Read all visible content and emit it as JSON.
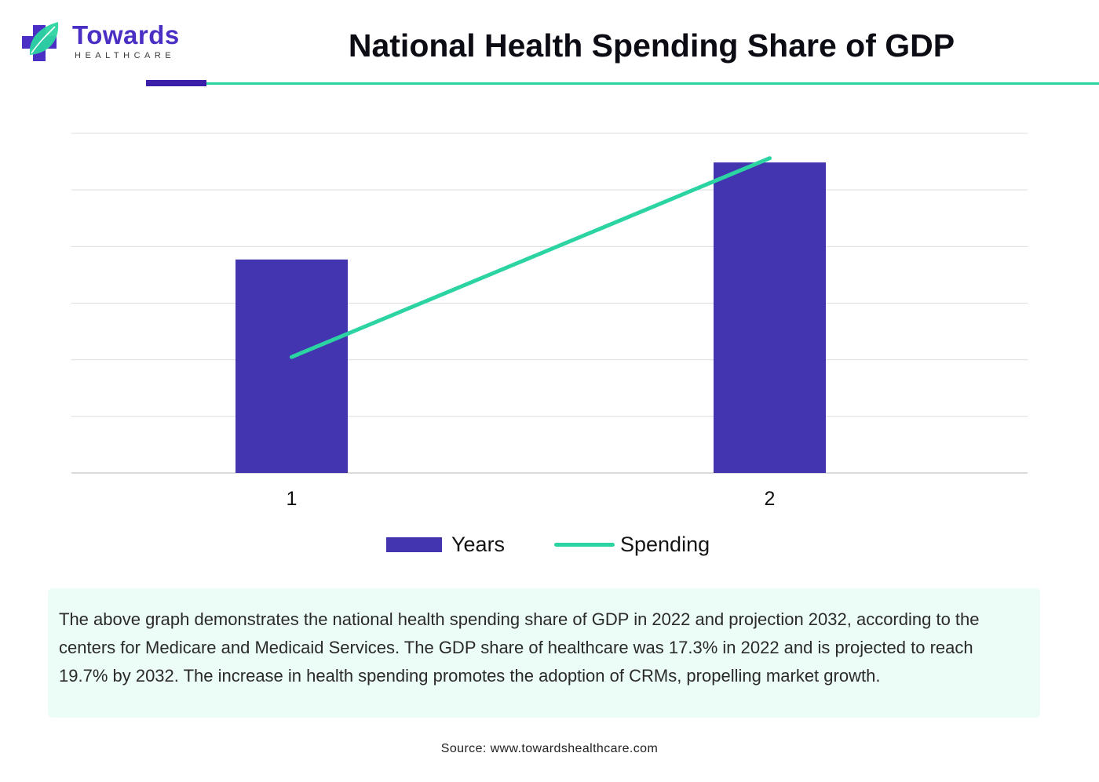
{
  "brand": {
    "name": "Towards",
    "tagline": "HEALTHCARE",
    "colors": {
      "purple": "#4b2fc4",
      "teal": "#2bd4a2",
      "bar": "#4335b0"
    }
  },
  "page_title": "National Health Spending Share of GDP",
  "chart_data": {
    "type": "bar",
    "title": "National Health Spending Share of GDP",
    "categories": [
      "1",
      "2"
    ],
    "series": [
      {
        "name": "Years",
        "kind": "bar",
        "values": [
          2022,
          2032
        ],
        "color": "#4335b0"
      },
      {
        "name": "Spending",
        "kind": "line",
        "values": [
          17.3,
          19.7
        ],
        "color": "#2bd4a2"
      }
    ],
    "gridlines": 6,
    "y_axis_visible": false,
    "bar_ylim": [
      2000,
      2035
    ],
    "line_ylim": [
      15.9,
      20.0
    ],
    "legend": [
      "Years",
      "Spending"
    ],
    "legend_position": "bottom"
  },
  "description": "The above graph demonstrates the national health spending share of GDP in 2022 and projection 2032, according to the centers for Medicare and Medicaid Services. The GDP share of healthcare was 17.3% in 2022 and is projected to reach 19.7% by 2032. The increase in health spending promotes the adoption of CRMs, propelling market growth.",
  "source": "Source: www.towardshealthcare.com"
}
